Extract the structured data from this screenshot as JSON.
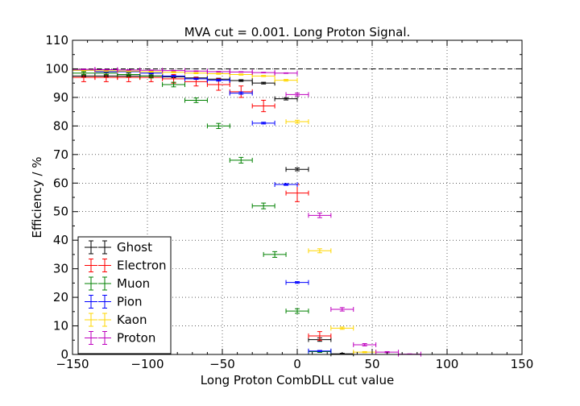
{
  "chart_data": {
    "type": "scatter",
    "title": "MVA cut = 0.001. Long Proton Signal.",
    "xlabel": "Long Proton CombDLL cut value",
    "ylabel": "Efficiency / %",
    "xlim": [
      -150,
      150
    ],
    "ylim": [
      0,
      110
    ],
    "xticks": [
      -150,
      -100,
      -50,
      0,
      50,
      100,
      150
    ],
    "yticks": [
      0,
      10,
      20,
      30,
      40,
      50,
      60,
      70,
      80,
      90,
      100,
      110
    ],
    "reference_line": 100,
    "grid": true,
    "legend_position": "lower-left",
    "series": [
      {
        "name": "Ghost",
        "color": "#000000",
        "x_half_width": 7.5,
        "x": [
          -142.5,
          -127.5,
          -112.5,
          -97.5,
          -82.5,
          -67.5,
          -52.5,
          -37.5,
          -22.5,
          -7.5,
          0,
          15,
          30
        ],
        "y": [
          97.5,
          97.5,
          97.5,
          97.5,
          97.2,
          96.8,
          96.4,
          95.9,
          95.0,
          89.5,
          64.8,
          5.2,
          0.2
        ],
        "yerr": [
          0.3,
          0.3,
          0.3,
          0.3,
          0.3,
          0.3,
          0.3,
          0.3,
          0.3,
          0.4,
          0.5,
          0.6,
          0.2
        ]
      },
      {
        "name": "Electron",
        "color": "#ff0000",
        "x_half_width": 7.5,
        "x": [
          -142.5,
          -127.5,
          -112.5,
          -97.5,
          -82.5,
          -67.5,
          -52.5,
          -37.5,
          -22.5,
          0,
          15
        ],
        "y": [
          97,
          97,
          97,
          97,
          96.5,
          95.5,
          94.5,
          92,
          87,
          56.5,
          6.5
        ],
        "yerr": [
          1.5,
          1.5,
          1.5,
          1.5,
          1.5,
          1.5,
          2,
          2,
          2,
          3,
          1.5
        ]
      },
      {
        "name": "Muon",
        "color": "#008000",
        "x_half_width": 7.5,
        "x": [
          -142.5,
          -127.5,
          -112.5,
          -97.5,
          -82.5,
          -67.5,
          -52.5,
          -37.5,
          -22.5,
          -15,
          0,
          15
        ],
        "y": [
          98.5,
          98.5,
          98,
          97.5,
          94.5,
          89,
          80,
          68,
          52,
          35,
          15.2,
          1
        ],
        "yerr": [
          0.5,
          0.5,
          0.5,
          0.7,
          0.8,
          0.8,
          0.9,
          1,
          1,
          1,
          0.8,
          0.3
        ]
      },
      {
        "name": "Pion",
        "color": "#0000ff",
        "x_half_width": 7.5,
        "x": [
          -142.5,
          -127.5,
          -112.5,
          -97.5,
          -82.5,
          -67.5,
          -52.5,
          -37.5,
          -22.5,
          -7.5,
          0,
          15
        ],
        "y": [
          99.5,
          99,
          99,
          98.5,
          97.5,
          96.5,
          96,
          91.5,
          81,
          59.5,
          25.2,
          1.2
        ],
        "yerr": [
          0.2,
          0.2,
          0.2,
          0.2,
          0.2,
          0.2,
          0.3,
          0.4,
          0.3,
          0.3,
          0.3,
          0.2
        ]
      },
      {
        "name": "Kaon",
        "color": "#ffd700",
        "x_half_width": 7.5,
        "x": [
          -142.5,
          -127.5,
          -112.5,
          -97.5,
          -82.5,
          -67.5,
          -52.5,
          -37.5,
          -22.5,
          -7.5,
          0,
          15,
          30,
          45
        ],
        "y": [
          99.5,
          99.3,
          99.2,
          99,
          98.8,
          98.5,
          98.3,
          98,
          97.5,
          96,
          81.5,
          36.3,
          9.2,
          0.8
        ],
        "yerr": [
          0.2,
          0.2,
          0.2,
          0.2,
          0.2,
          0.2,
          0.2,
          0.2,
          0.2,
          0.3,
          0.5,
          0.7,
          0.4,
          0.2
        ]
      },
      {
        "name": "Proton",
        "color": "#bf00bf",
        "x_half_width": 7.5,
        "x": [
          -142.5,
          -127.5,
          -112.5,
          -97.5,
          -82.5,
          -67.5,
          -52.5,
          -37.5,
          -22.5,
          -7.5,
          0,
          15,
          30,
          45,
          60,
          75
        ],
        "y": [
          99.8,
          99.7,
          99.6,
          99.5,
          99.4,
          99.2,
          99,
          98.9,
          98.7,
          98.5,
          91,
          48.7,
          15.8,
          3.4,
          0.8,
          0.1
        ],
        "yerr": [
          0.1,
          0.1,
          0.1,
          0.1,
          0.1,
          0.1,
          0.1,
          0.1,
          0.1,
          0.1,
          0.5,
          0.8,
          0.6,
          0.4,
          0.2,
          0.1
        ]
      }
    ]
  }
}
